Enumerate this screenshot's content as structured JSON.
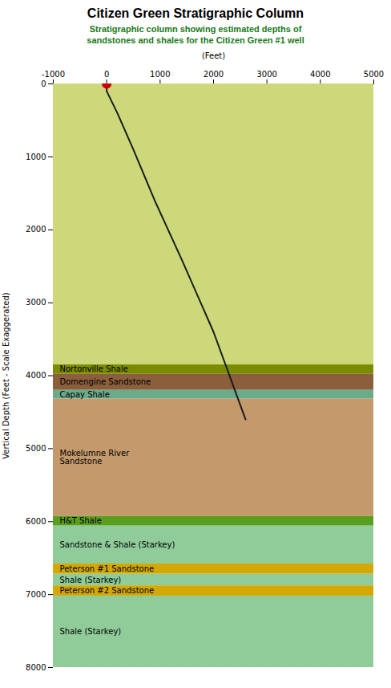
{
  "chart_data": {
    "type": "stratigraphic_column",
    "title": "Citizen Green Stratigraphic Column",
    "subtitle": "Stratigraphic column showing estimated depths of\nsandstones and shales for the Citizen Green #1 well",
    "subtitle_color": "#1a7a1a",
    "xlabel": "(Feet)",
    "ylabel": "Vertical Depth (Feet - Scale Exaggerated)",
    "xlim": [
      -1000,
      5000
    ],
    "ylim": [
      8000,
      0
    ],
    "xticks": [
      -1000,
      0,
      1000,
      2000,
      3000,
      4000,
      5000
    ],
    "yticks": [
      0,
      1000,
      2000,
      3000,
      4000,
      5000,
      6000,
      7000,
      8000
    ],
    "grid": false,
    "layers": [
      {
        "name": null,
        "top": 0,
        "bottom": 3850,
        "color": "#ccd87a"
      },
      {
        "name": "Nortonville Shale",
        "top": 3850,
        "bottom": 3980,
        "color": "#7a8c00"
      },
      {
        "name": "Domengine Sandstone",
        "top": 3980,
        "bottom": 4200,
        "color": "#8b5e3c"
      },
      {
        "name": "Capay Shale",
        "top": 4200,
        "bottom": 4320,
        "color": "#6aab8a"
      },
      {
        "name": "Mokelumne River\nSandstone",
        "top": 4320,
        "bottom": 5930,
        "color": "#c49a6c"
      },
      {
        "name": "H&T Shale",
        "top": 5930,
        "bottom": 6060,
        "color": "#5a9e20"
      },
      {
        "name": "Sandstone & Shale (Starkey)",
        "top": 6060,
        "bottom": 6580,
        "color": "#8fcc9a"
      },
      {
        "name": "Peterson #1 Sandstone",
        "top": 6580,
        "bottom": 6720,
        "color": "#d4a800"
      },
      {
        "name": "Shale (Starkey)",
        "top": 6720,
        "bottom": 6880,
        "color": "#8fcc9a"
      },
      {
        "name": "Peterson #2 Sandstone",
        "top": 6880,
        "bottom": 7020,
        "color": "#d4a800"
      },
      {
        "name": "Shale (Starkey)",
        "top": 7020,
        "bottom": 8000,
        "color": "#8fcc9a"
      }
    ],
    "series": [
      {
        "type": "line",
        "color": "#1a1a1a",
        "x": [
          0,
          0,
          200,
          500,
          900,
          1400,
          2000,
          2600
        ],
        "values": [
          0,
          100,
          400,
          900,
          1600,
          2400,
          3400,
          4600
        ]
      },
      {
        "type": "scatter",
        "marker": "circle",
        "color": "#cc0000",
        "x": [
          0
        ],
        "values": [
          0
        ]
      }
    ]
  }
}
